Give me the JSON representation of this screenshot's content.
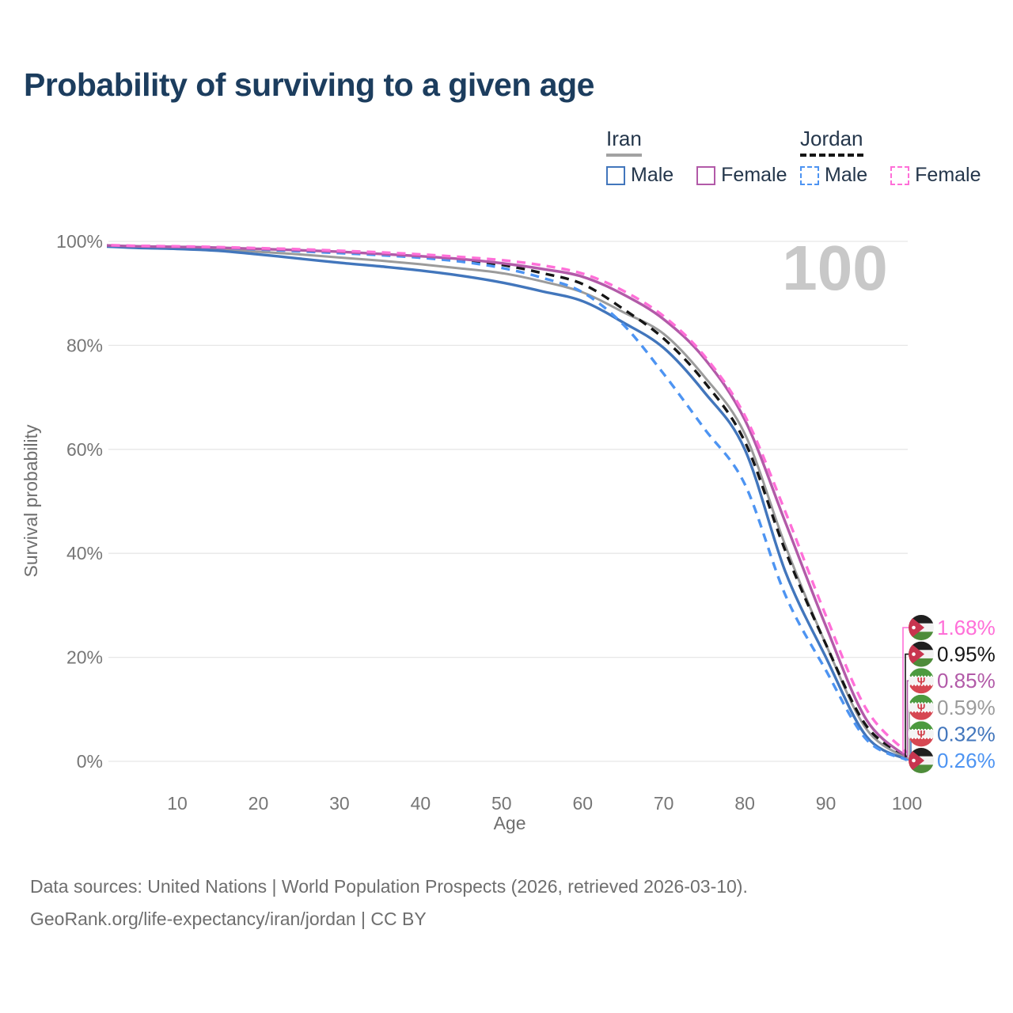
{
  "title": "Probability of surviving to a given age",
  "age_counter": "100",
  "legend": {
    "groups": [
      {
        "label": "Iran",
        "underline_color": "#A2A2A2",
        "underline_style": "solid",
        "items": [
          {
            "label": "Male",
            "color": "#4276BC",
            "dash": false
          },
          {
            "label": "Female",
            "color": "#B25AA8",
            "dash": false
          }
        ]
      },
      {
        "label": "Jordan",
        "underline_color": "#161616",
        "underline_style": "dashed",
        "items": [
          {
            "label": "Male",
            "color": "#4D94F2",
            "dash": true
          },
          {
            "label": "Female",
            "color": "#FF6FD8",
            "dash": true
          }
        ]
      }
    ]
  },
  "chart_data": {
    "type": "line",
    "title": "Probability of surviving to a given age",
    "xlabel": "Age",
    "ylabel": "Survival probability",
    "xlim": [
      0,
      100
    ],
    "ylim": [
      0,
      100
    ],
    "grid": "horizontal",
    "x_ticks": [
      10,
      20,
      30,
      40,
      50,
      60,
      70,
      80,
      90,
      100
    ],
    "y_ticks": [
      {
        "value": 0,
        "label": "0%"
      },
      {
        "value": 20,
        "label": "20%"
      },
      {
        "value": 40,
        "label": "40%"
      },
      {
        "value": 60,
        "label": "60%"
      },
      {
        "value": 80,
        "label": "80%"
      },
      {
        "value": 100,
        "label": "100%"
      }
    ],
    "x": [
      0,
      5,
      10,
      15,
      20,
      25,
      30,
      35,
      40,
      45,
      50,
      55,
      60,
      65,
      70,
      75,
      80,
      85,
      90,
      95,
      100
    ],
    "series": [
      {
        "name": "Jordan Female",
        "flag": "jordan-flag",
        "color": "#FF6FD8",
        "dash": true,
        "z": 6,
        "end_label": "1.68%",
        "values": [
          99.35,
          99.15,
          99.05,
          98.9,
          98.7,
          98.5,
          98.2,
          97.9,
          97.5,
          97.0,
          96.4,
          95.4,
          93.8,
          90.5,
          85.6,
          78.0,
          66.5,
          48.0,
          28.0,
          10.0,
          1.68
        ]
      },
      {
        "name": "Jordan",
        "flag": "jordan-flag",
        "color": "#161616",
        "dash": true,
        "z": 3,
        "end_label": "0.95%",
        "values": [
          99.3,
          99.1,
          99.0,
          98.8,
          98.55,
          98.25,
          97.95,
          97.6,
          97.1,
          96.4,
          95.5,
          93.9,
          91.8,
          87.0,
          81.3,
          73.0,
          61.5,
          40.5,
          22.5,
          6.8,
          0.95
        ]
      },
      {
        "name": "Iran Female",
        "flag": "iran-flag",
        "color": "#B25AA8",
        "dash": false,
        "z": 5,
        "end_label": "0.85%",
        "values": [
          99.3,
          99.05,
          98.95,
          98.8,
          98.55,
          98.3,
          98.0,
          97.6,
          97.15,
          96.6,
          95.8,
          94.7,
          93.2,
          89.8,
          85.0,
          77.5,
          65.7,
          46.0,
          26.0,
          8.0,
          0.85
        ]
      },
      {
        "name": "Iran",
        "flag": "iran-flag",
        "color": "#9B9B9B",
        "dash": false,
        "z": 1,
        "end_label": "0.59%",
        "values": [
          99.2,
          98.9,
          98.75,
          98.5,
          98.0,
          97.5,
          96.9,
          96.3,
          95.6,
          94.8,
          93.9,
          92.3,
          90.2,
          86.4,
          82.2,
          74.0,
          63.0,
          41.5,
          22.5,
          6.2,
          0.59
        ]
      },
      {
        "name": "Iran Male",
        "flag": "iran-flag",
        "color": "#4276BC",
        "dash": false,
        "z": 2,
        "end_label": "0.32%",
        "values": [
          99.1,
          98.75,
          98.55,
          98.2,
          97.5,
          96.7,
          95.9,
          95.2,
          94.4,
          93.4,
          92.1,
          90.4,
          88.5,
          84.4,
          79.5,
          71.0,
          60.0,
          36.5,
          20.0,
          4.8,
          0.32
        ]
      },
      {
        "name": "Jordan Male",
        "flag": "jordan-flag",
        "color": "#4D94F2",
        "dash": true,
        "z": 4,
        "end_label": "0.26%",
        "values": [
          99.25,
          99.05,
          98.95,
          98.75,
          98.45,
          98.1,
          97.75,
          97.35,
          96.85,
          96.1,
          94.9,
          93.0,
          90.2,
          84.0,
          74.5,
          64.0,
          53.3,
          32.0,
          17.5,
          4.2,
          0.26
        ]
      }
    ],
    "colors": {
      "grid": "#E7E7E7",
      "tick_label": "#767676",
      "axis_title": "#6E6E6E",
      "watermark": "#C8C8C8"
    },
    "flag_colors": {
      "jordan_black": "#1F1F1F",
      "jordan_white": "#F2F2F2",
      "jordan_green": "#4E8C3A",
      "jordan_red": "#C8354F",
      "iran_green": "#4C9A3F",
      "iran_white": "#F4F4F4",
      "iran_red": "#D64752",
      "iran_emblem": "#D03A45"
    }
  },
  "footer": {
    "line1": "Data sources: United Nations | World Population Prospects (2026, retrieved 2026-03-10).",
    "line2": "GeoRank.org/life-expectancy/iran/jordan | CC BY"
  }
}
